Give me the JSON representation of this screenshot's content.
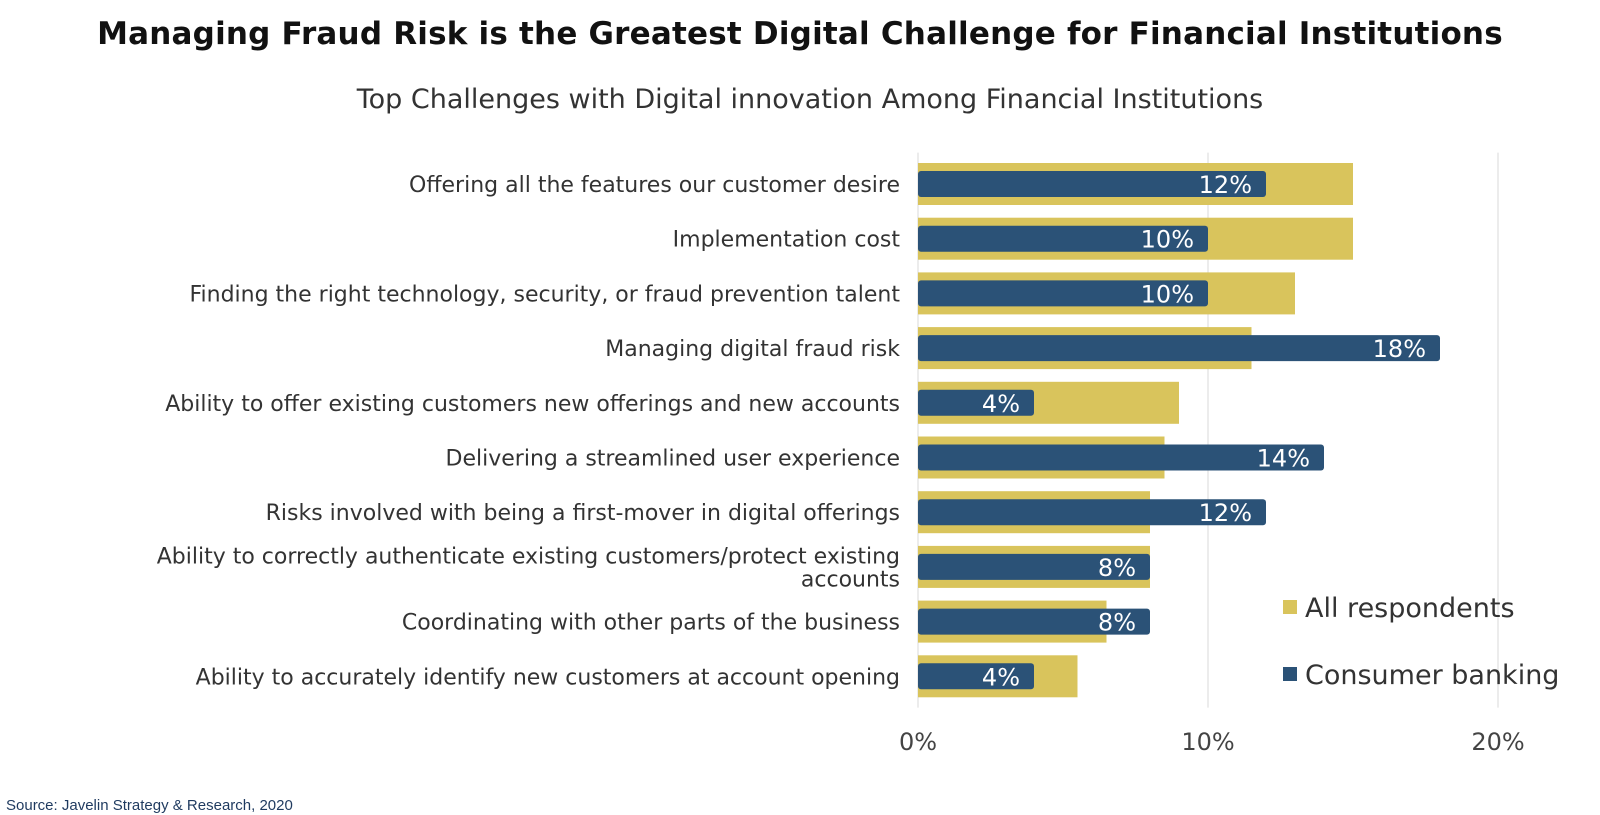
{
  "chart_data": {
    "type": "bar",
    "orientation": "horizontal",
    "title": "Managing Fraud Risk is the Greatest Digital Challenge for Financial Institutions",
    "subtitle": "Top Challenges with Digital innovation Among Financial Institutions",
    "categories": [
      "Offering all the features our customer desire",
      "Implementation cost",
      "Finding the right technology, security, or fraud prevention talent",
      "Managing digital fraud risk",
      "Ability to offer existing customers new offerings and new accounts",
      "Delivering a streamlined user experience",
      "Risks involved with being a first-mover in digital offerings",
      "Ability to correctly authenticate existing customers/protect existing accounts",
      "Coordinating with other parts of the business",
      "Ability to accurately identify new customers at account opening"
    ],
    "category_label_lines": [
      [
        "Offering all the features our customer desire"
      ],
      [
        "Implementation cost"
      ],
      [
        "Finding the right technology, security, or fraud prevention talent"
      ],
      [
        "Managing digital fraud risk"
      ],
      [
        "Ability to offer existing customers new offerings and new accounts"
      ],
      [
        "Delivering a streamlined user experience"
      ],
      [
        "Risks involved with being a first-mover in digital offerings"
      ],
      [
        "Ability to correctly authenticate existing customers/protect existing",
        "accounts"
      ],
      [
        "Coordinating with other parts of the business"
      ],
      [
        "Ability to accurately identify new customers at account opening"
      ]
    ],
    "series": [
      {
        "name": "All respondents",
        "color": "#d9c45c",
        "values": [
          15,
          15,
          13,
          11.5,
          9,
          8.5,
          8,
          8,
          6.5,
          5.5
        ]
      },
      {
        "name": "Consumer banking",
        "color": "#2b5277",
        "values": [
          12,
          10,
          10,
          18,
          4,
          14,
          12,
          8,
          8,
          4
        ],
        "data_labels": [
          "12%",
          "10%",
          "10%",
          "18%",
          "4%",
          "14%",
          "12%",
          "8%",
          "8%",
          "4%"
        ]
      }
    ],
    "xlim": [
      0,
      22
    ],
    "xticks": [
      0,
      10,
      20
    ],
    "xtick_labels": [
      "0%",
      "10%",
      "20%"
    ],
    "grid": true,
    "legend_position": "bottom-right"
  },
  "source": "Source: Javelin Strategy & Research, 2020"
}
